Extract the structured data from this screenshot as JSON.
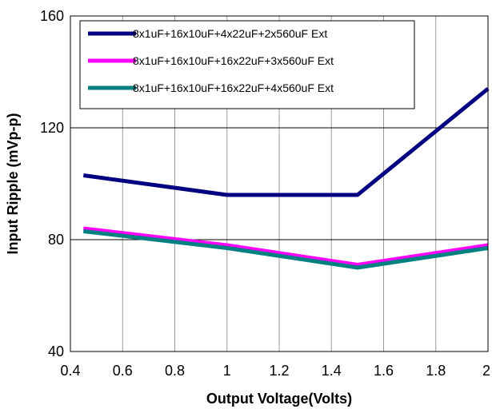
{
  "chart_data": {
    "type": "line",
    "xlabel": "Output Voltage(Volts)",
    "ylabel": "Input Ripple (mVp-p)",
    "xlim": [
      0.4,
      2.0
    ],
    "ylim": [
      40,
      160
    ],
    "x_ticks": [
      "0.4",
      "0.6",
      "0.8",
      "1",
      "1.2",
      "1.4",
      "1.6",
      "1.8",
      "2"
    ],
    "y_ticks": [
      "40",
      "80",
      "120",
      "160"
    ],
    "grid": {
      "vertical": true,
      "horizontal": true
    },
    "legend_position": "top-left",
    "series": [
      {
        "name": "8x1uF+16x10uF+4x22uF+2x560uF Ext",
        "color": "#000080",
        "points": [
          [
            0.45,
            103
          ],
          [
            1.0,
            96
          ],
          [
            1.5,
            96
          ],
          [
            2.0,
            134
          ]
        ]
      },
      {
        "name": "8x1uF+16x10uF+16x22uF+3x560uF Ext",
        "color": "#ff00ff",
        "points": [
          [
            0.45,
            84
          ],
          [
            1.0,
            78
          ],
          [
            1.5,
            71
          ],
          [
            2.0,
            78
          ]
        ]
      },
      {
        "name": "8x1uF+16x10uF+16x22uF+4x560uF Ext",
        "color": "#008080",
        "points": [
          [
            0.45,
            83
          ],
          [
            1.0,
            77
          ],
          [
            1.5,
            70
          ],
          [
            2.0,
            77
          ]
        ]
      }
    ]
  }
}
